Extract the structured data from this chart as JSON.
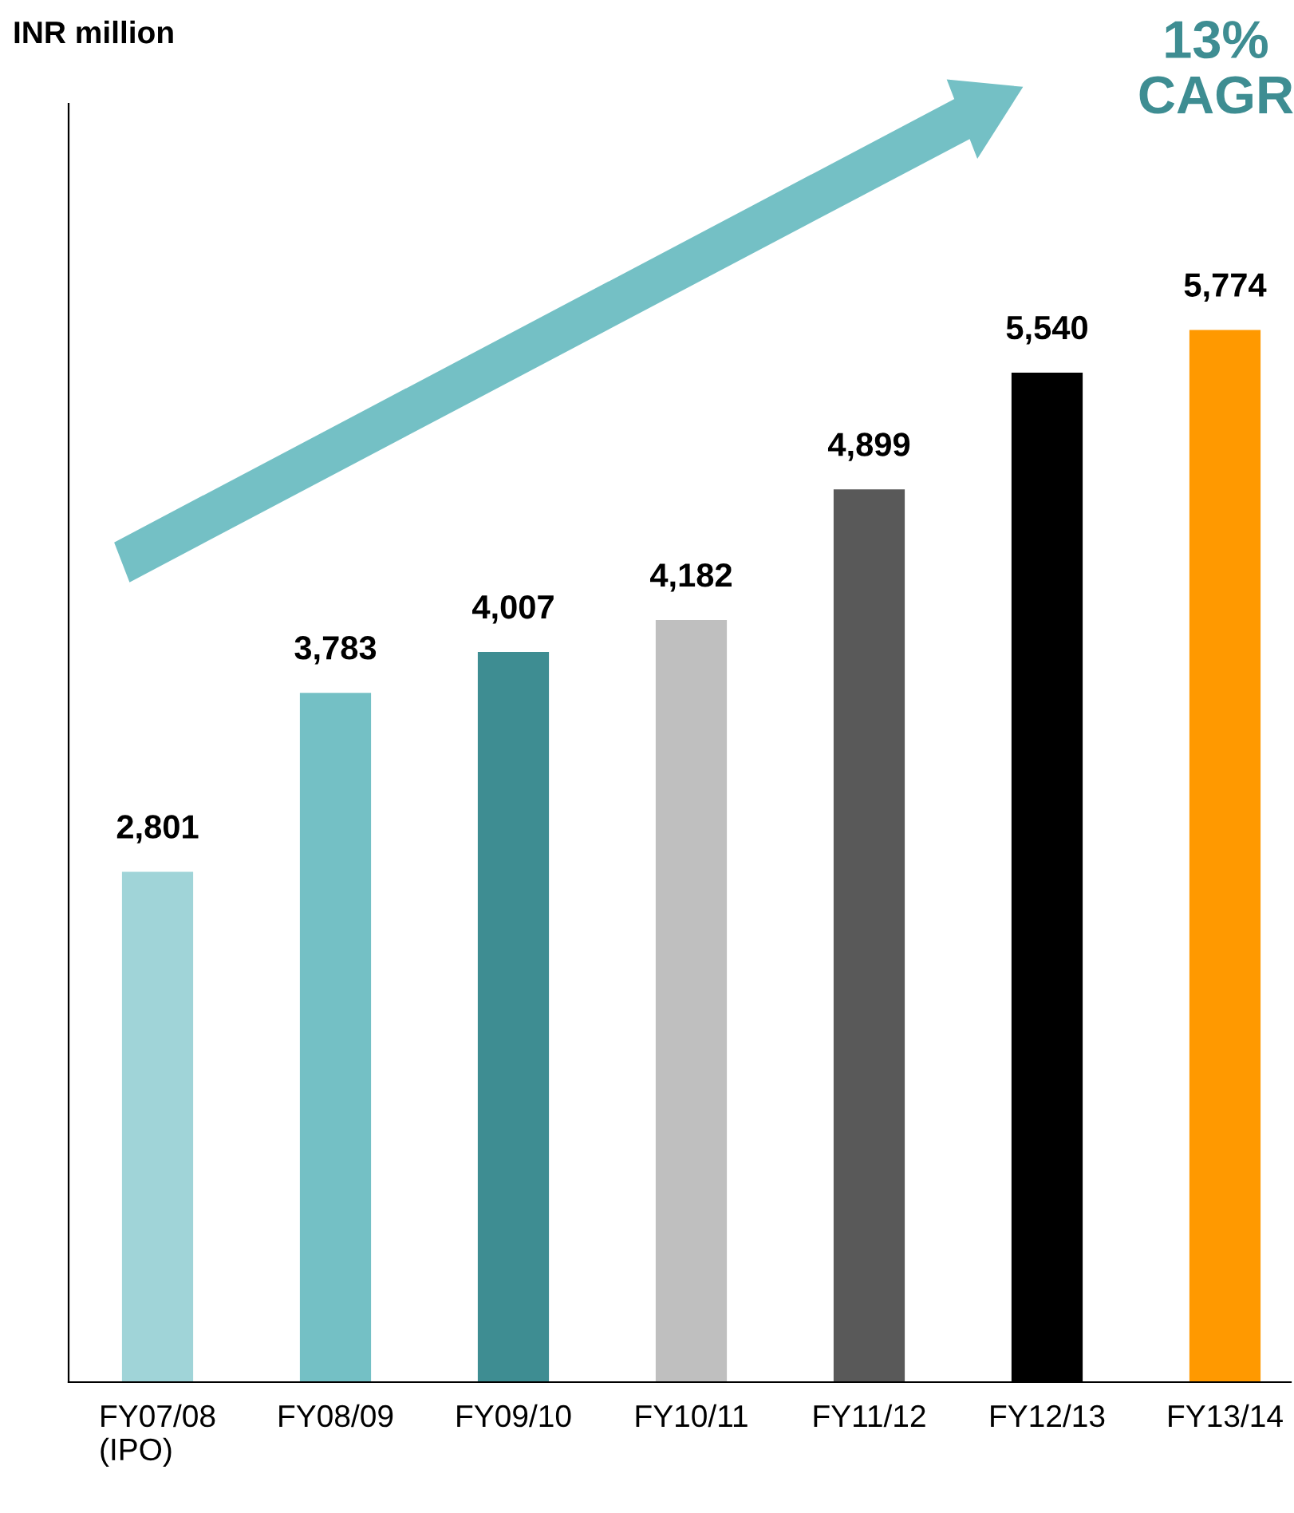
{
  "chart_data": {
    "type": "bar",
    "categories": [
      "FY07/08\n(IPO)",
      "FY08/09",
      "FY09/10",
      "FY10/11",
      "FY11/12",
      "FY12/13",
      "FY13/14"
    ],
    "values": [
      2801,
      3783,
      4007,
      4182,
      4899,
      5540,
      5774
    ],
    "value_labels": [
      "2,801",
      "3,783",
      "4,007",
      "4,182",
      "4,899",
      "5,540",
      "5,774"
    ],
    "colors": [
      "#a0d4d8",
      "#74c0c5",
      "#3e8d92",
      "#bfbfbf",
      "#595959",
      "#000000",
      "#ff9900"
    ],
    "grid": false,
    "legend": false,
    "tick_labels": "x",
    "annotations": [
      "INR million",
      "13%\nCAGR"
    ]
  }
}
